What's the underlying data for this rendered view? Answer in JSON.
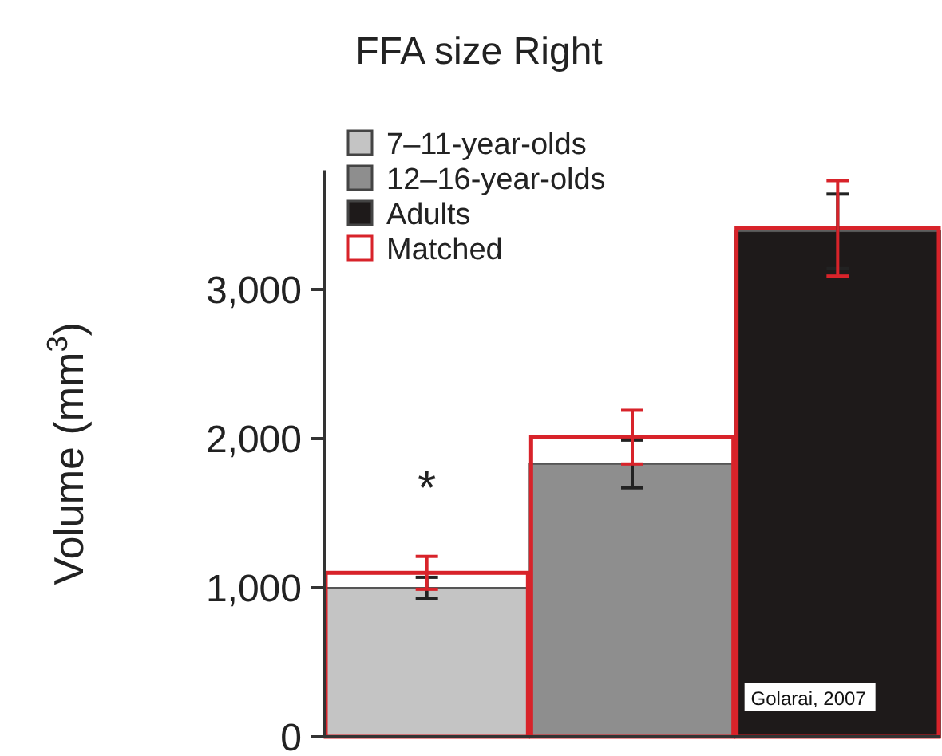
{
  "chart_data": {
    "type": "bar",
    "title": "FFA size Right",
    "ylabel": "Volume (mm$^{3}$)",
    "categories": [
      null,
      null,
      null
    ],
    "series": [
      {
        "name": "7–11-year-olds",
        "color": "#c4c4c4",
        "values": [
          1000,
          null,
          null
        ],
        "errors": [
          70,
          null,
          null
        ]
      },
      {
        "name": "12–16-year-olds",
        "color": "#8e8e8e",
        "values": [
          null,
          1830,
          null
        ],
        "errors": [
          null,
          160,
          null
        ]
      },
      {
        "name": "Adults",
        "color": "#1e1a1a",
        "values": [
          null,
          null,
          3390
        ],
        "errors": [
          null,
          null,
          250
        ]
      },
      {
        "name": "Matched",
        "color": "#d8232a",
        "values": [
          1100,
          2010,
          3410
        ],
        "errors": [
          110,
          180,
          320
        ]
      }
    ],
    "ylim": [
      0,
      3800
    ],
    "yticks": [
      0,
      {
        "value": 1000,
        "label": "1,000"
      },
      {
        "value": 2000,
        "label": "2,000"
      },
      {
        "value": 3000,
        "label": "3,000"
      }
    ],
    "grid": false,
    "legend": "top left",
    "annotations": [
      "*",
      "Golarai, 2007"
    ]
  }
}
